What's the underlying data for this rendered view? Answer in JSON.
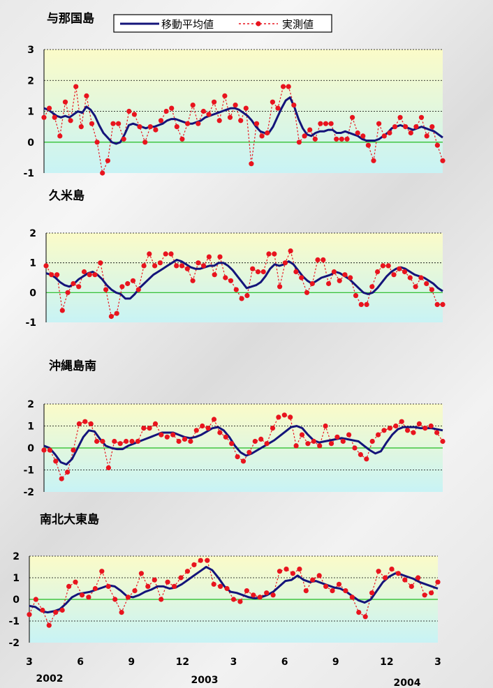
{
  "legend": {
    "moving_average_label": "移動平均値",
    "measured_label": "実測値"
  },
  "colors": {
    "moving_average": "#14147a",
    "measured": "#e8141e",
    "zero_line": "#22bb22",
    "plot_top": "#fbfbc8",
    "plot_bottom": "#c8f3f5"
  },
  "x_axis": {
    "tick_labels": [
      "3",
      "6",
      "9",
      "12",
      "3",
      "6",
      "9",
      "12",
      "3"
    ],
    "year_labels": [
      "2002",
      "2003",
      "2004"
    ]
  },
  "chart_data": [
    {
      "type": "line",
      "title": "与那国島",
      "ylim": [
        -1,
        3
      ],
      "yticks": [
        -1,
        0,
        1,
        2,
        3
      ],
      "grid": true,
      "series": [
        {
          "name": "移動平均値",
          "style": "solid",
          "values": [
            1.1,
            1.05,
            0.95,
            0.85,
            0.8,
            0.85,
            0.8,
            0.9,
            1.0,
            0.95,
            1.15,
            1.05,
            0.85,
            0.55,
            0.3,
            0.15,
            0,
            -0.05,
            0,
            0.25,
            0.55,
            0.6,
            0.55,
            0.5,
            0.45,
            0.5,
            0.5,
            0.55,
            0.6,
            0.7,
            0.75,
            0.75,
            0.7,
            0.65,
            0.6,
            0.6,
            0.65,
            0.7,
            0.8,
            0.85,
            0.9,
            0.95,
            1.0,
            1.05,
            1.1,
            1.1,
            1.05,
            0.95,
            0.85,
            0.7,
            0.5,
            0.35,
            0.3,
            0.3,
            0.5,
            0.8,
            1.1,
            1.35,
            1.45,
            1.15,
            0.75,
            0.45,
            0.25,
            0.2,
            0.3,
            0.35,
            0.35,
            0.4,
            0.4,
            0.3,
            0.3,
            0.35,
            0.3,
            0.25,
            0.2,
            0.1,
            0.05,
            0.05,
            0.05,
            0.1,
            0.2,
            0.3,
            0.45,
            0.5,
            0.55,
            0.5,
            0.45,
            0.4,
            0.45,
            0.5,
            0.45,
            0.4,
            0.35,
            0.25,
            0.15
          ]
        },
        {
          "name": "実測値",
          "style": "dotted-markers",
          "values": [
            0.8,
            1.1,
            0.8,
            0.2,
            1.3,
            0.7,
            1.8,
            0.5,
            1.5,
            0.6,
            0,
            -1,
            -0.6,
            0.6,
            0.6,
            0.1,
            1.0,
            0.9,
            0.5,
            0,
            0.5,
            0.4,
            0.7,
            1.0,
            1.1,
            0.5,
            0.1,
            0.6,
            1.2,
            0.6,
            1.0,
            0.9,
            1.3,
            0.7,
            1.5,
            0.8,
            1.2,
            0.7,
            1.1,
            -0.7,
            0.6,
            0.2,
            0.3,
            1.3,
            1.1,
            1.8,
            1.8,
            1.2,
            0,
            0.2,
            0.4,
            0.1,
            0.6,
            0.6,
            0.6,
            0.1,
            0.1,
            0.1,
            0.8,
            0.3,
            0.2,
            -0.1,
            -0.6,
            0.6,
            0.2,
            0.3,
            0.5,
            0.8,
            0.5,
            0.3,
            0.5,
            0.8,
            0.2,
            0.5,
            -0.1,
            -0.6
          ]
        }
      ]
    },
    {
      "type": "line",
      "title": "久米島",
      "ylim": [
        -1,
        2
      ],
      "yticks": [
        -1,
        0,
        1,
        2
      ],
      "grid": true,
      "series": [
        {
          "name": "移動平均値",
          "style": "solid",
          "values": [
            0.65,
            0.6,
            0.5,
            0.35,
            0.25,
            0.2,
            0.3,
            0.45,
            0.55,
            0.65,
            0.7,
            0.6,
            0.45,
            0.25,
            0.1,
            0,
            -0.05,
            -0.2,
            -0.2,
            -0.05,
            0.15,
            0.3,
            0.45,
            0.6,
            0.7,
            0.8,
            0.9,
            1.0,
            1.1,
            1.05,
            0.95,
            0.85,
            0.8,
            0.8,
            0.85,
            0.9,
            0.9,
            1.0,
            1.0,
            0.9,
            0.75,
            0.55,
            0.35,
            0.15,
            0.2,
            0.25,
            0.35,
            0.55,
            0.8,
            0.95,
            0.9,
            0.95,
            1.05,
            0.95,
            0.75,
            0.55,
            0.4,
            0.3,
            0.4,
            0.5,
            0.55,
            0.6,
            0.7,
            0.65,
            0.55,
            0.45,
            0.3,
            0.15,
            0,
            -0.05,
            0,
            0.15,
            0.35,
            0.55,
            0.7,
            0.8,
            0.85,
            0.8,
            0.7,
            0.6,
            0.55,
            0.5,
            0.4,
            0.3,
            0.15,
            0.05
          ]
        },
        {
          "name": "実測値",
          "style": "dotted-markers",
          "values": [
            0.9,
            0.6,
            0.6,
            -0.6,
            0,
            0.3,
            0.2,
            0.7,
            0.6,
            0.6,
            1.0,
            0.1,
            -0.8,
            -0.7,
            0.2,
            0.3,
            0.4,
            0.1,
            0.9,
            1.3,
            0.9,
            1.0,
            1.3,
            1.3,
            0.9,
            0.9,
            0.8,
            0.4,
            1.0,
            0.9,
            1.2,
            0.6,
            1.2,
            0.5,
            0.4,
            0.1,
            -0.2,
            -0.1,
            0.8,
            0.7,
            0.7,
            1.3,
            1.3,
            0.2,
            1.0,
            1.4,
            0.7,
            0.5,
            0,
            0.3,
            1.1,
            1.1,
            0.3,
            0.7,
            0.4,
            0.6,
            0.5,
            -0.1,
            -0.4,
            -0.4,
            0.2,
            0.7,
            0.9,
            0.9,
            0.6,
            0.8,
            0.7,
            0.5,
            0.2,
            0.5,
            0.3,
            0.1,
            -0.4,
            -0.4
          ]
        }
      ]
    },
    {
      "type": "line",
      "title": "沖縄島南",
      "ylim": [
        -2,
        2
      ],
      "yticks": [
        -2,
        -1,
        0,
        1,
        2
      ],
      "grid": true,
      "series": [
        {
          "name": "移動平均値",
          "style": "solid",
          "values": [
            0.1,
            0,
            -0.3,
            -0.65,
            -0.75,
            -0.5,
            0,
            0.5,
            0.8,
            0.75,
            0.4,
            0.1,
            0,
            -0.05,
            -0.05,
            0.1,
            0.2,
            0.3,
            0.4,
            0.5,
            0.6,
            0.7,
            0.7,
            0.7,
            0.6,
            0.5,
            0.45,
            0.5,
            0.6,
            0.75,
            0.9,
            0.95,
            0.8,
            0.5,
            0.1,
            -0.2,
            -0.35,
            -0.25,
            -0.1,
            0.05,
            0.2,
            0.35,
            0.55,
            0.75,
            0.95,
            1.0,
            0.9,
            0.6,
            0.35,
            0.25,
            0.3,
            0.35,
            0.4,
            0.45,
            0.4,
            0.35,
            0.3,
            0.1,
            -0.1,
            -0.25,
            -0.15,
            0.25,
            0.6,
            0.85,
            0.95,
            0.95,
            0.95,
            0.9,
            0.9,
            0.9,
            0.85,
            0.8
          ]
        },
        {
          "name": "実測値",
          "style": "dotted-markers",
          "values": [
            -0.1,
            -0.1,
            -0.6,
            -1.4,
            -1.1,
            -0.1,
            1.1,
            1.2,
            1.1,
            0.3,
            0.3,
            -0.9,
            0.3,
            0.2,
            0.3,
            0.3,
            0.3,
            0.9,
            0.9,
            1.1,
            0.6,
            0.5,
            0.6,
            0.3,
            0.4,
            0.3,
            0.8,
            1.0,
            0.9,
            1.3,
            0.7,
            0.5,
            0.2,
            -0.4,
            -0.6,
            -0.2,
            0.3,
            0.4,
            0.2,
            0.9,
            1.4,
            1.5,
            1.4,
            0.1,
            0.6,
            0.2,
            0.3,
            0.1,
            1.0,
            0.2,
            0.5,
            0.3,
            0.6,
            0,
            -0.3,
            -0.5,
            0.3,
            0.6,
            0.8,
            0.9,
            1.0,
            1.2,
            0.8,
            0.7,
            1.1,
            0.9,
            1.0,
            0.7,
            0.3
          ]
        }
      ]
    },
    {
      "type": "line",
      "title": "南北大東島",
      "ylim": [
        -2,
        2
      ],
      "yticks": [
        -2,
        -1,
        0,
        1,
        2
      ],
      "grid": true,
      "series": [
        {
          "name": "移動平均値",
          "style": "solid",
          "values": [
            -0.3,
            -0.35,
            -0.55,
            -0.6,
            -0.55,
            -0.45,
            -0.2,
            0.1,
            0.25,
            0.3,
            0.35,
            0.45,
            0.55,
            0.65,
            0.6,
            0.4,
            0.15,
            0.1,
            0.2,
            0.35,
            0.45,
            0.6,
            0.6,
            0.5,
            0.55,
            0.7,
            0.9,
            1.1,
            1.3,
            1.5,
            1.35,
            1.0,
            0.6,
            0.35,
            0.3,
            0.2,
            0.1,
            0.05,
            0.1,
            0.2,
            0.35,
            0.6,
            0.85,
            0.9,
            1.1,
            0.9,
            0.8,
            0.85,
            0.75,
            0.65,
            0.55,
            0.5,
            0.35,
            0.15,
            -0.05,
            -0.15,
            0,
            0.4,
            0.8,
            1.05,
            1.2,
            1.15,
            1.05,
            0.95,
            0.8,
            0.7,
            0.6,
            0.5
          ]
        },
        {
          "name": "実測値",
          "style": "dotted-markers",
          "values": [
            -0.7,
            0,
            -0.5,
            -1.2,
            -0.6,
            -0.5,
            0.6,
            0.8,
            0.2,
            0.1,
            0.5,
            1.3,
            0.6,
            0,
            -0.6,
            0.1,
            0.4,
            1.2,
            0.6,
            0.9,
            0,
            0.8,
            0.6,
            1.0,
            1.3,
            1.6,
            1.8,
            1.8,
            0.7,
            0.6,
            0.5,
            0,
            -0.1,
            0.4,
            0.2,
            0.1,
            0.3,
            0.2,
            1.3,
            1.4,
            1.2,
            1.4,
            0.4,
            0.9,
            1.1,
            0.6,
            0.4,
            0.7,
            0.4,
            0.1,
            -0.6,
            -0.8,
            0.3,
            1.3,
            1.0,
            1.4,
            1.2,
            0.9,
            0.6,
            1.0,
            0.2,
            0.3,
            0.8
          ]
        }
      ]
    }
  ]
}
